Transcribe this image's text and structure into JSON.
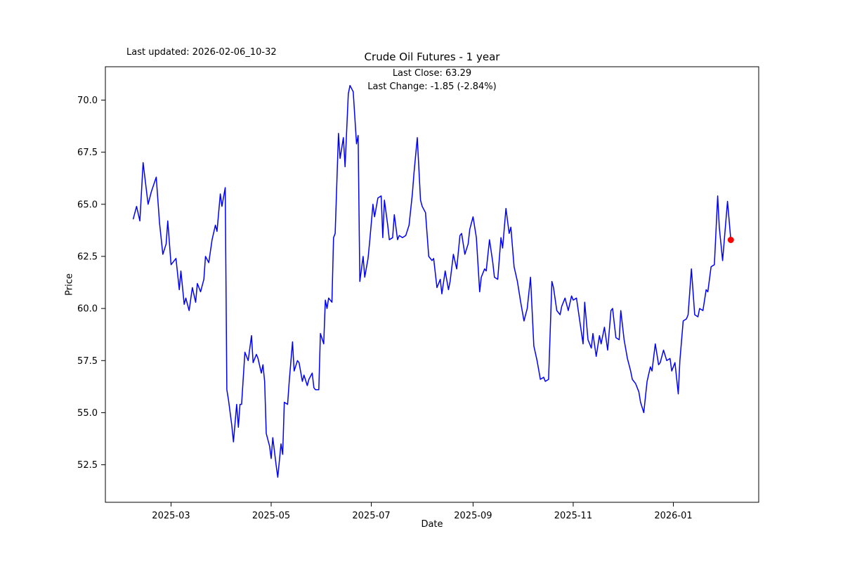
{
  "figure": {
    "last_updated": "Last updated: 2026-02-06_10-32"
  },
  "chart_data": {
    "type": "line",
    "title": "Crude Oil Futures - 1 year",
    "xlabel": "Date",
    "ylabel": "Price",
    "annotation_last_close": "Last Close: 63.29",
    "annotation_last_change": "Last Change: -1.85 (-2.84%)",
    "last_close": 63.29,
    "last_change": -1.85,
    "last_change_pct": -2.84,
    "line_color": "#0000ff",
    "marker_color": "#ff0000",
    "grid": false,
    "legend": false,
    "start_date": "2025-02-06",
    "xlim_days": [
      -17,
      381
    ],
    "ylim": [
      50.7,
      71.6
    ],
    "xticks": [
      {
        "day": 23,
        "label": "2025-03"
      },
      {
        "day": 84,
        "label": "2025-05"
      },
      {
        "day": 145,
        "label": "2025-07"
      },
      {
        "day": 207,
        "label": "2025-09"
      },
      {
        "day": 268,
        "label": "2025-11"
      },
      {
        "day": 329,
        "label": "2026-01"
      }
    ],
    "yticks": [
      {
        "value": 52.5,
        "label": "52.5"
      },
      {
        "value": 55.0,
        "label": "55.0"
      },
      {
        "value": 57.5,
        "label": "57.5"
      },
      {
        "value": 60.0,
        "label": "60.0"
      },
      {
        "value": 62.5,
        "label": "62.5"
      },
      {
        "value": 65.0,
        "label": "65.0"
      },
      {
        "value": 67.5,
        "label": "67.5"
      },
      {
        "value": 70.0,
        "label": "70.0"
      }
    ],
    "series": [
      {
        "name": "Price",
        "x_days": [
          0,
          2,
          4,
          6,
          9,
          11,
          14,
          16,
          18,
          20,
          21,
          23,
          26,
          28,
          29,
          31,
          32,
          34,
          36,
          38,
          39,
          41,
          43,
          44,
          46,
          48,
          50,
          51,
          53,
          54,
          56,
          57,
          58,
          60,
          61,
          63,
          64,
          65,
          66,
          68,
          70,
          72,
          73,
          75,
          76,
          78,
          79,
          80,
          81,
          83,
          84,
          85,
          87,
          88,
          90,
          91,
          92,
          94,
          95,
          97,
          98,
          100,
          101,
          103,
          104,
          106,
          107,
          109,
          110,
          111,
          113,
          114,
          116,
          117,
          118,
          119,
          121,
          122,
          123,
          125,
          126,
          128,
          129,
          131,
          132,
          134,
          136,
          137,
          138,
          140,
          141,
          143,
          144,
          146,
          147,
          149,
          151,
          152,
          153,
          155,
          156,
          158,
          159,
          161,
          162,
          164,
          166,
          168,
          170,
          171,
          173,
          175,
          176,
          178,
          180,
          182,
          183,
          185,
          187,
          188,
          190,
          192,
          193,
          195,
          197,
          199,
          200,
          202,
          204,
          205,
          207,
          209,
          211,
          212,
          214,
          215,
          217,
          219,
          220,
          222,
          224,
          225,
          227,
          229,
          230,
          232,
          234,
          236,
          238,
          240,
          242,
          244,
          246,
          248,
          250,
          251,
          253,
          255,
          256,
          258,
          260,
          261,
          263,
          265,
          267,
          268,
          270,
          272,
          274,
          275,
          277,
          279,
          280,
          282,
          284,
          285,
          287,
          289,
          291,
          292,
          294,
          296,
          297,
          299,
          301,
          303,
          304,
          306,
          308,
          309,
          311,
          313,
          315,
          316,
          318,
          320,
          321,
          323,
          325,
          327,
          328,
          330,
          332,
          333,
          335,
          337,
          338,
          340,
          342,
          344,
          345,
          347,
          349,
          350,
          352,
          354,
          356,
          357,
          359,
          362,
          364
        ],
        "values": [
          64.3,
          64.9,
          64.2,
          67.0,
          65.0,
          65.6,
          66.3,
          64.1,
          62.6,
          63.1,
          64.2,
          62.1,
          62.4,
          60.9,
          61.8,
          60.2,
          60.5,
          59.9,
          61.0,
          60.3,
          61.2,
          60.8,
          61.4,
          62.5,
          62.2,
          63.3,
          64.0,
          63.7,
          65.5,
          64.9,
          65.8,
          56.1,
          55.6,
          54.4,
          53.6,
          55.4,
          54.3,
          55.4,
          55.4,
          57.9,
          57.5,
          58.7,
          57.4,
          57.8,
          57.6,
          56.9,
          57.3,
          56.5,
          54.0,
          53.4,
          52.8,
          53.8,
          52.5,
          51.9,
          53.5,
          53.0,
          55.5,
          55.4,
          56.5,
          58.4,
          57.0,
          57.5,
          57.4,
          56.5,
          56.8,
          56.3,
          56.6,
          56.9,
          56.2,
          56.1,
          56.1,
          58.8,
          58.3,
          60.4,
          60.0,
          60.5,
          60.3,
          63.4,
          63.6,
          68.4,
          67.2,
          68.2,
          66.8,
          70.3,
          70.7,
          70.4,
          67.9,
          68.3,
          61.3,
          62.5,
          61.5,
          62.4,
          63.2,
          65.0,
          64.4,
          65.3,
          65.4,
          63.4,
          65.2,
          64.0,
          63.3,
          63.4,
          64.5,
          63.3,
          63.5,
          63.4,
          63.5,
          64.0,
          65.5,
          66.5,
          68.2,
          65.2,
          64.9,
          64.6,
          62.5,
          62.3,
          62.4,
          61.0,
          61.4,
          60.7,
          61.8,
          60.9,
          61.3,
          62.6,
          61.9,
          63.5,
          63.6,
          62.6,
          63.1,
          63.8,
          64.4,
          63.4,
          60.8,
          61.5,
          61.9,
          61.8,
          63.3,
          62.2,
          61.5,
          61.4,
          63.4,
          62.9,
          64.8,
          63.6,
          63.9,
          62.0,
          61.3,
          60.3,
          59.4,
          60.0,
          61.5,
          58.2,
          57.5,
          56.6,
          56.7,
          56.5,
          56.6,
          61.3,
          61.0,
          59.9,
          59.7,
          60.1,
          60.5,
          59.9,
          60.6,
          60.4,
          60.5,
          59.4,
          58.3,
          60.3,
          58.5,
          58.1,
          58.8,
          57.7,
          58.7,
          58.3,
          59.1,
          58.0,
          59.9,
          60.0,
          58.6,
          58.5,
          59.9,
          58.5,
          57.6,
          57.0,
          56.6,
          56.4,
          56.0,
          55.5,
          55.0,
          56.5,
          57.2,
          57.0,
          58.3,
          57.3,
          57.4,
          58.0,
          57.5,
          57.6,
          57.0,
          57.4,
          55.9,
          57.5,
          59.4,
          59.5,
          59.7,
          61.9,
          59.7,
          59.6,
          60.0,
          59.9,
          60.9,
          60.8,
          62.0,
          62.1,
          65.4,
          63.9,
          62.3,
          65.14,
          63.29
        ]
      }
    ],
    "marker_point": {
      "day": 364,
      "value": 63.29
    }
  }
}
